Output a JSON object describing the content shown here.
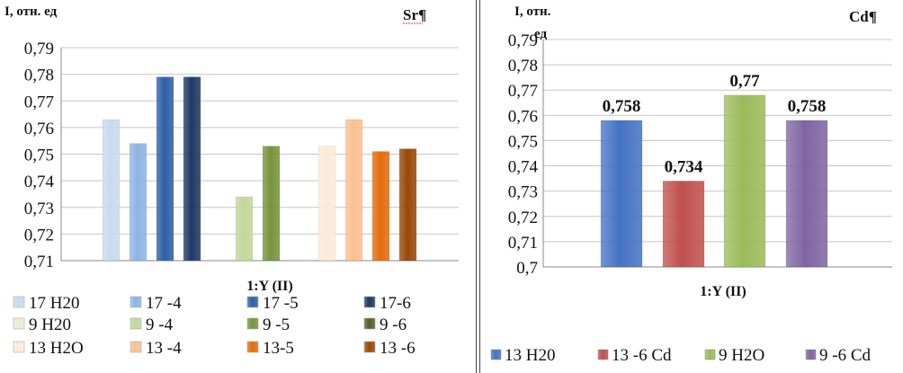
{
  "chart_data": [
    {
      "type": "bar",
      "panel_label": "Sr¶",
      "ylabel": "I, отн. ед",
      "xlabel": "1:Y (II)",
      "ylim": [
        0.71,
        0.79
      ],
      "y_ticks": [
        "0,71",
        "0,72",
        "0,73",
        "0,74",
        "0,75",
        "0,76",
        "0,77",
        "0,78",
        "0,79"
      ],
      "grid": true,
      "legend_position": "bottom",
      "series": [
        {
          "name": "17 H20",
          "value": 0.763,
          "color": "#c9daf0"
        },
        {
          "name": "17 -4",
          "value": 0.754,
          "color": "#8eb4e3"
        },
        {
          "name": "17  -5",
          "value": 0.779,
          "color": "#2e5fa6"
        },
        {
          "name": "17-6",
          "value": 0.779,
          "color": "#1f3864"
        },
        {
          "name": "9 H20",
          "value": null,
          "color": "#e6eed5"
        },
        {
          "name": "9  -4",
          "value": 0.734,
          "color": "#c3d69b"
        },
        {
          "name": "9  -5",
          "value": 0.753,
          "color": "#77933c"
        },
        {
          "name": "9  -6",
          "value": null,
          "color": "#4f6228"
        },
        {
          "name": "13 H2O",
          "value": 0.753,
          "color": "#fde9d9"
        },
        {
          "name": "13  -4",
          "value": 0.763,
          "color": "#fac090"
        },
        {
          "name": "13-5",
          "value": 0.751,
          "color": "#e46c0a"
        },
        {
          "name": "13  -6",
          "value": 0.752,
          "color": "#984807"
        }
      ]
    },
    {
      "type": "bar",
      "panel_label": "Cd¶",
      "ylabel": "I, отн. ед",
      "xlabel": "1:Y (II)",
      "ylim": [
        0.7,
        0.79
      ],
      "y_ticks": [
        "0,7",
        "0,71",
        "0,72",
        "0,73",
        "0,74",
        "0,75",
        "0,76",
        "0,77",
        "0,78",
        "0,79"
      ],
      "grid": true,
      "legend_position": "bottom",
      "series": [
        {
          "name": "13 H20",
          "value": 0.758,
          "label": "0,758",
          "color": "#4472c4"
        },
        {
          "name": "13 -6 Cd",
          "value": 0.734,
          "label": "0,734",
          "color": "#c0504d"
        },
        {
          "name": "9 H2O",
          "value": 0.768,
          "label": "0,77",
          "color": "#9bbb59"
        },
        {
          "name": "9  -6 Cd",
          "value": 0.758,
          "label": "0,758",
          "color": "#8064a2"
        }
      ]
    }
  ]
}
